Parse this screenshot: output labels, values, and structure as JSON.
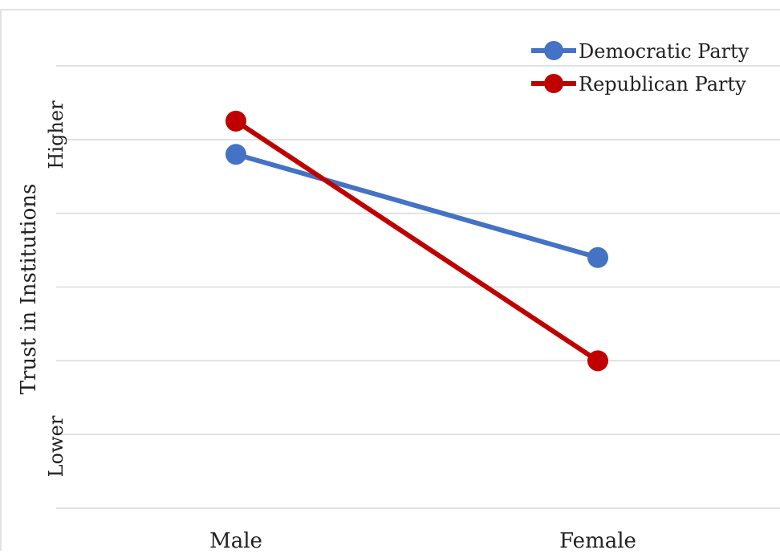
{
  "chart_data": {
    "type": "line",
    "title": "",
    "categories": [
      "Male",
      "Female"
    ],
    "xlabel": "",
    "ylabel": "Trust in Institutions",
    "ylim": [
      0,
      6
    ],
    "y_tick_labels": {
      "high": "Higher",
      "low": "Lower"
    },
    "grid": true,
    "legend_position": "top-right",
    "series": [
      {
        "name": "Democratic Party",
        "color": "#4472C4",
        "values": [
          4.8,
          3.4
        ]
      },
      {
        "name": "Republican Party",
        "color": "#C00000",
        "values": [
          5.25,
          2.0
        ]
      }
    ]
  }
}
